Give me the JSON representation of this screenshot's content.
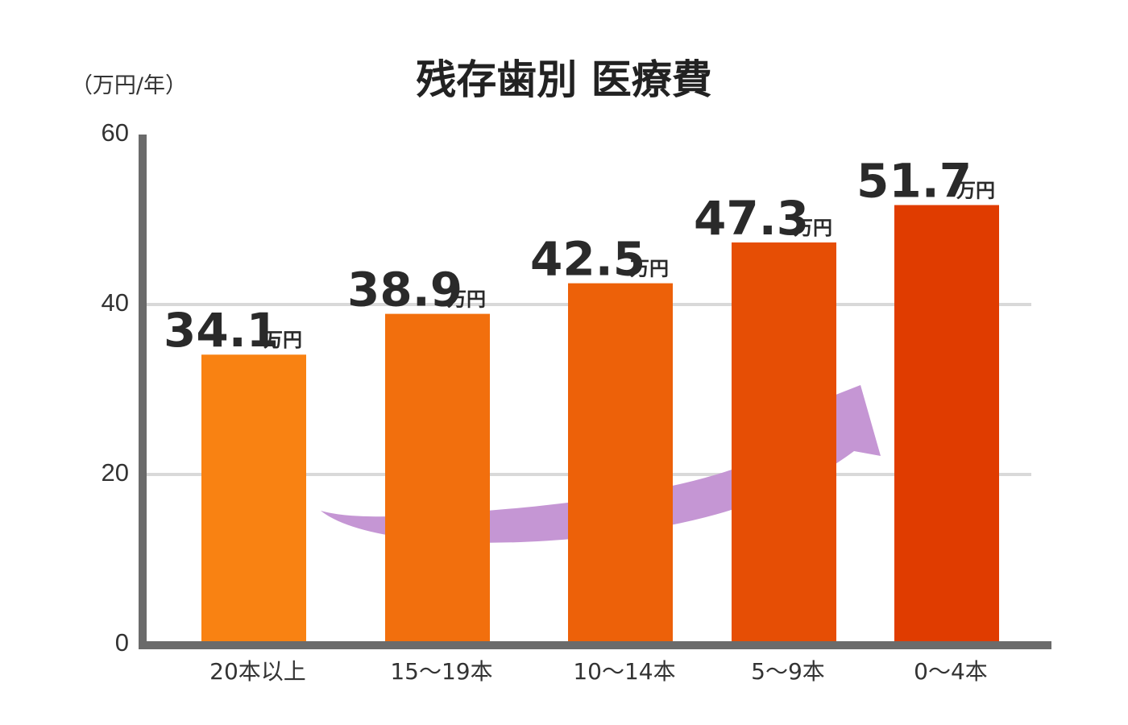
{
  "chart_data": {
    "type": "bar",
    "title": "残存歯別 医療費",
    "ylabel": "（万円/年）",
    "value_unit": "万円",
    "categories": [
      "20本以上",
      "15〜19本",
      "10〜14本",
      "5〜9本",
      "0〜4本"
    ],
    "values": [
      34.1,
      38.9,
      42.5,
      47.3,
      51.7
    ],
    "value_labels": [
      "34.1",
      "38.9",
      "42.5",
      "47.3",
      "51.7"
    ],
    "ylim": [
      0,
      60
    ],
    "yticks": [
      "0",
      "20",
      "40",
      "60"
    ],
    "grid": true,
    "legend": "none",
    "colors": {
      "bar_start": "#F98212",
      "bar_end": "#E03C00",
      "arrow": "#C596D4",
      "axis": "#6b6b6b",
      "grid": "#d9d9d9"
    }
  }
}
